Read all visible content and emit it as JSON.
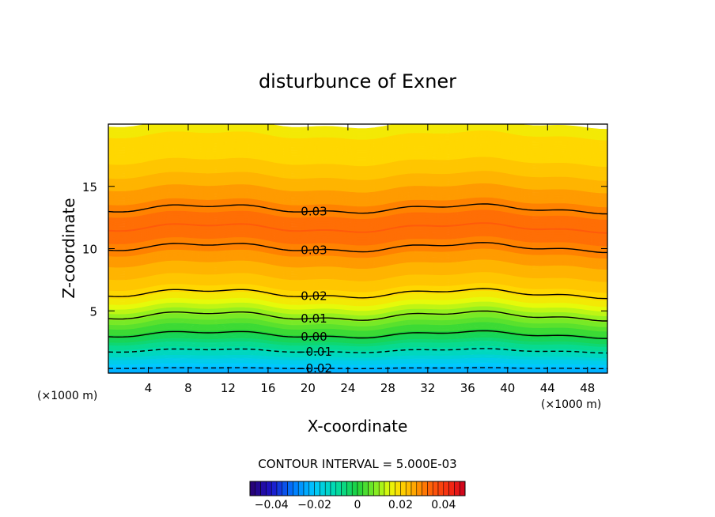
{
  "chart_data": {
    "type": "heatmap",
    "title": "disturbunce of Exner",
    "xlabel": "X-coordinate",
    "ylabel": "Z-coordinate",
    "x_unit_left": "(×1000 m)",
    "x_unit_right": "(×1000 m)",
    "xlim": [
      0,
      50
    ],
    "ylim": [
      0,
      20
    ],
    "x_ticks": [
      4,
      8,
      12,
      16,
      20,
      24,
      28,
      32,
      36,
      40,
      44,
      48
    ],
    "y_ticks": [
      5,
      10,
      15
    ],
    "contour_interval_text": "CONTOUR INTERVAL = 5.000E-03",
    "colorbar": {
      "range": [
        -0.05,
        0.05
      ],
      "ticks": [
        -0.04,
        -0.02,
        0,
        0.02,
        0.04
      ],
      "tick_labels": [
        "−0.04",
        "−0.02",
        "0",
        "0.02",
        "0.04"
      ]
    },
    "contour_labels": [
      {
        "text": "0.03",
        "x": 20.0,
        "z": 13.2
      },
      {
        "text": "0.03",
        "x": 20.0,
        "z": 10.1
      },
      {
        "text": "0.02",
        "x": 20.0,
        "z": 6.4
      },
      {
        "text": "0.01",
        "x": 20.0,
        "z": 4.6
      },
      {
        "text": "0.00",
        "x": 20.0,
        "z": 3.1
      },
      {
        "text": "−0.01",
        "x": 20.0,
        "z": 1.8
      },
      {
        "text": "−0.02",
        "x": 20.0,
        "z": 0.4
      }
    ]
  }
}
